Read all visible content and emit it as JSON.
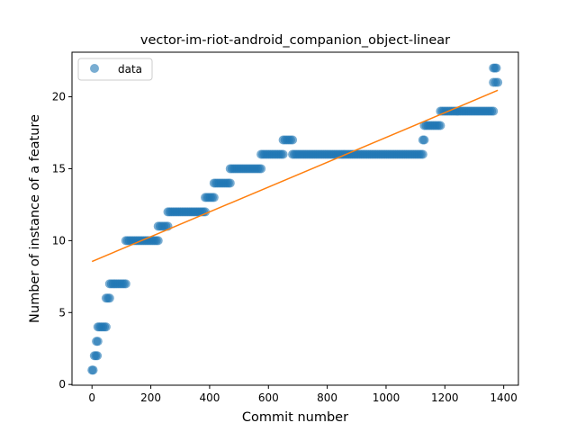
{
  "chart_data": {
    "type": "scatter",
    "title": "vector-im-riot-android_companion_object-linear",
    "xlabel": "Commit number",
    "ylabel": "Number of instance of a feature",
    "xlim": [
      -68,
      1450
    ],
    "ylim": [
      -0.05,
      23.1
    ],
    "xticks": [
      0,
      200,
      400,
      600,
      800,
      1000,
      1200,
      1400
    ],
    "yticks": [
      0,
      5,
      10,
      15,
      20
    ],
    "grid": false,
    "legend_position": "top-left",
    "legend": [
      "data"
    ],
    "colors": {
      "data": "#1f77b4",
      "fit": "#ff7f0e"
    },
    "series": [
      {
        "name": "data",
        "kind": "scatter",
        "segments": [
          {
            "x_start": 0,
            "x_end": 4,
            "y": 1
          },
          {
            "x_start": 8,
            "x_end": 18,
            "y": 2
          },
          {
            "x_start": 15,
            "x_end": 20,
            "y": 3
          },
          {
            "x_start": 20,
            "x_end": 48,
            "y": 4
          },
          {
            "x_start": 48,
            "x_end": 60,
            "y": 6
          },
          {
            "x_start": 60,
            "x_end": 115,
            "y": 7
          },
          {
            "x_start": 115,
            "x_end": 225,
            "y": 10
          },
          {
            "x_start": 225,
            "x_end": 258,
            "y": 11
          },
          {
            "x_start": 258,
            "x_end": 385,
            "y": 12
          },
          {
            "x_start": 385,
            "x_end": 415,
            "y": 13
          },
          {
            "x_start": 415,
            "x_end": 470,
            "y": 14
          },
          {
            "x_start": 470,
            "x_end": 575,
            "y": 15
          },
          {
            "x_start": 575,
            "x_end": 650,
            "y": 16
          },
          {
            "x_start": 650,
            "x_end": 682,
            "y": 17
          },
          {
            "x_start": 682,
            "x_end": 1125,
            "y": 16
          },
          {
            "x_start": 1125,
            "x_end": 1130,
            "y": 17
          },
          {
            "x_start": 1130,
            "x_end": 1185,
            "y": 18
          },
          {
            "x_start": 1185,
            "x_end": 1365,
            "y": 19
          },
          {
            "x_start": 1365,
            "x_end": 1375,
            "y": 22
          },
          {
            "x_start": 1365,
            "x_end": 1380,
            "y": 21
          }
        ]
      },
      {
        "name": "",
        "kind": "line",
        "x": [
          0,
          1380
        ],
        "y": [
          8.55,
          20.45
        ]
      }
    ]
  }
}
